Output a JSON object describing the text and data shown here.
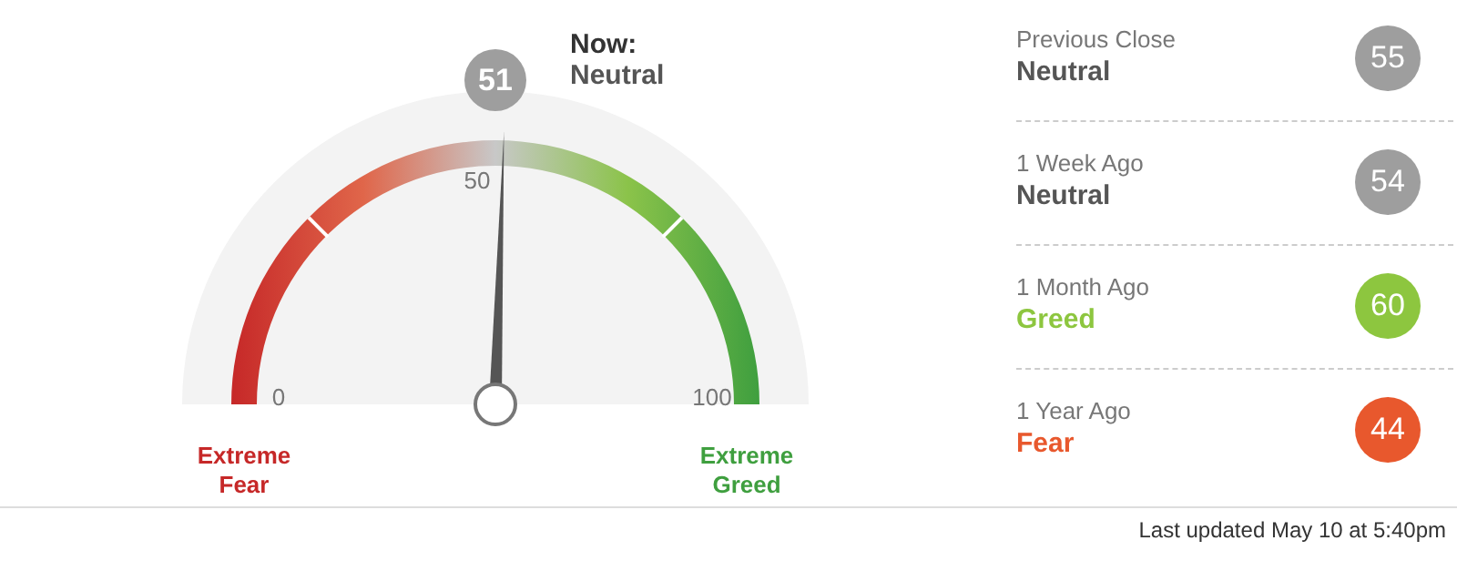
{
  "chart_data": [
    {
      "type": "other",
      "title": "Now:",
      "subtitle": "Neutral",
      "values": [
        51
      ],
      "data_labels": true,
      "annotations": [
        "0",
        "50",
        "100",
        "Extreme Fear",
        "Extreme Greed"
      ]
    },
    {
      "type": "other",
      "data_labels": true,
      "categories": [
        "Previous Close",
        "1 Week Ago",
        "1 Month Ago",
        "1 Year Ago"
      ],
      "values": [
        55,
        54,
        60,
        44
      ],
      "colors": [
        "#9e9e9e",
        "#9e9e9e",
        "#8dc63f",
        "#e8582d"
      ],
      "annotations": [
        "Neutral",
        "Neutral",
        "Greed",
        "Fear",
        "Last updated May 10 at 5:40pm"
      ]
    }
  ]
}
